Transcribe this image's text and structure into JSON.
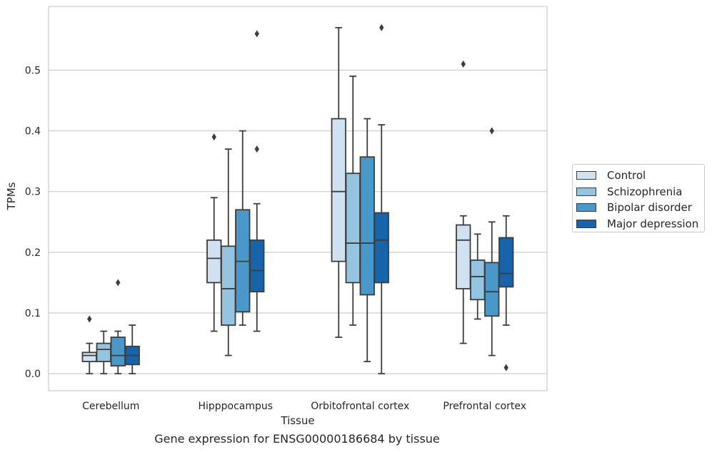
{
  "chart_data": {
    "type": "box",
    "caption": "Gene expression for ENSG00000186684 by tissue",
    "xlabel": "Tissue",
    "ylabel": "TPMs",
    "ylim": [
      -0.028,
      0.605
    ],
    "yticks": [
      0.0,
      0.1,
      0.2,
      0.3,
      0.4,
      0.5
    ],
    "ytick_labels": [
      "0.0",
      "0.1",
      "0.2",
      "0.3",
      "0.4",
      "0.5"
    ],
    "grid": "horizontal",
    "legend_position": "right",
    "categories": [
      "Cerebellum",
      "Hipppocampus",
      "Orbitofrontal cortex",
      "Prefrontal cortex"
    ],
    "series": [
      {
        "name": "Control",
        "color": "#d0e1f2",
        "boxes": [
          {
            "whislo": 0.0,
            "q1": 0.02,
            "med": 0.03,
            "q3": 0.035,
            "whishi": 0.05,
            "fliers": [
              0.09
            ]
          },
          {
            "whislo": 0.07,
            "q1": 0.15,
            "med": 0.19,
            "q3": 0.22,
            "whishi": 0.29,
            "fliers": [
              0.39
            ]
          },
          {
            "whislo": 0.06,
            "q1": 0.185,
            "med": 0.3,
            "q3": 0.42,
            "whishi": 0.57,
            "fliers": []
          },
          {
            "whislo": 0.05,
            "q1": 0.14,
            "med": 0.22,
            "q3": 0.245,
            "whishi": 0.26,
            "fliers": [
              0.51
            ]
          }
        ]
      },
      {
        "name": "Schizophrenia",
        "color": "#94c4df",
        "boxes": [
          {
            "whislo": 0.0,
            "q1": 0.02,
            "med": 0.04,
            "q3": 0.05,
            "whishi": 0.07,
            "fliers": []
          },
          {
            "whislo": 0.03,
            "q1": 0.08,
            "med": 0.14,
            "q3": 0.21,
            "whishi": 0.37,
            "fliers": []
          },
          {
            "whislo": 0.08,
            "q1": 0.15,
            "med": 0.215,
            "q3": 0.33,
            "whishi": 0.49,
            "fliers": []
          },
          {
            "whislo": 0.09,
            "q1": 0.122,
            "med": 0.16,
            "q3": 0.187,
            "whishi": 0.23,
            "fliers": []
          }
        ]
      },
      {
        "name": "Bipolar disorder",
        "color": "#4a98c9",
        "boxes": [
          {
            "whislo": 0.0,
            "q1": 0.013,
            "med": 0.03,
            "q3": 0.06,
            "whishi": 0.07,
            "fliers": [
              0.15
            ]
          },
          {
            "whislo": 0.08,
            "q1": 0.102,
            "med": 0.185,
            "q3": 0.27,
            "whishi": 0.4,
            "fliers": []
          },
          {
            "whislo": 0.02,
            "q1": 0.13,
            "med": 0.215,
            "q3": 0.357,
            "whishi": 0.42,
            "fliers": []
          },
          {
            "whislo": 0.03,
            "q1": 0.095,
            "med": 0.135,
            "q3": 0.183,
            "whishi": 0.25,
            "fliers": [
              0.4
            ]
          }
        ]
      },
      {
        "name": "Major depression",
        "color": "#1764ab",
        "boxes": [
          {
            "whislo": 0.0,
            "q1": 0.015,
            "med": 0.03,
            "q3": 0.045,
            "whishi": 0.08,
            "fliers": []
          },
          {
            "whislo": 0.07,
            "q1": 0.135,
            "med": 0.17,
            "q3": 0.22,
            "whishi": 0.28,
            "fliers": [
              0.56,
              0.37
            ]
          },
          {
            "whislo": 0.0,
            "q1": 0.15,
            "med": 0.22,
            "q3": 0.265,
            "whishi": 0.41,
            "fliers": [
              0.57
            ]
          },
          {
            "whislo": 0.08,
            "q1": 0.143,
            "med": 0.165,
            "q3": 0.224,
            "whishi": 0.26,
            "fliers": [
              0.01
            ]
          }
        ]
      }
    ]
  }
}
